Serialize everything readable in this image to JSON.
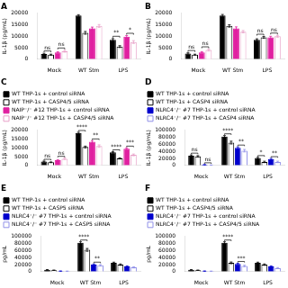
{
  "chart_data": [
    {
      "type": "bar",
      "title": "A",
      "categories": [
        "Mock",
        "WT Stm",
        "LPS"
      ],
      "series": [
        {
          "color": "#000000",
          "marker": "filled",
          "values": [
            2300,
            19000,
            8500
          ],
          "errors": [
            300,
            400,
            500
          ]
        },
        {
          "color": "#000000",
          "marker": "open",
          "values": [
            2000,
            11500,
            5500
          ],
          "errors": [
            200,
            600,
            400
          ]
        },
        {
          "color": "#e020a0",
          "marker": "filled",
          "values": [
            3000,
            13500,
            9800
          ],
          "errors": [
            300,
            500,
            500
          ]
        },
        {
          "color": "#e8a0c8",
          "marker": "open",
          "values": [
            3500,
            14500,
            7500
          ],
          "errors": [
            400,
            600,
            600
          ]
        }
      ],
      "ylabel": "IL-1β (pg/mL)",
      "ylim": [
        0,
        20000
      ],
      "yticks": [
        0,
        5000,
        10000,
        15000,
        20000
      ],
      "grid": false,
      "annotations": [
        {
          "text": "ns",
          "category": "Mock",
          "series": [
            0,
            1
          ]
        },
        {
          "text": "ns",
          "category": "Mock",
          "series": [
            2,
            3
          ]
        },
        {
          "text": "**",
          "category": "LPS",
          "series": [
            0,
            1
          ]
        },
        {
          "text": "*",
          "category": "LPS",
          "series": [
            2,
            3
          ]
        }
      ]
    },
    {
      "type": "bar",
      "title": "B",
      "categories": [
        "Mock",
        "WT Stm",
        "LPS"
      ],
      "series": [
        {
          "color": "#000000",
          "marker": "filled",
          "values": [
            2500,
            19000,
            8500
          ],
          "errors": [
            300,
            500,
            400
          ]
        },
        {
          "color": "#000000",
          "marker": "open",
          "values": [
            2000,
            14500,
            9500
          ],
          "errors": [
            200,
            500,
            400
          ]
        },
        {
          "color": "#e020a0",
          "marker": "filled",
          "values": [
            3000,
            13500,
            9500
          ],
          "errors": [
            300,
            600,
            500
          ]
        },
        {
          "color": "#e8a0c8",
          "marker": "open",
          "values": [
            4000,
            12000,
            10000
          ],
          "errors": [
            400,
            500,
            400
          ]
        }
      ],
      "ylabel": "IL-1β (pg/mL)",
      "ylim": [
        0,
        20000
      ],
      "yticks": [
        0,
        5000,
        10000,
        15000,
        20000
      ],
      "grid": false,
      "annotations": [
        {
          "text": "ns",
          "category": "Mock",
          "series": [
            0,
            1
          ]
        },
        {
          "text": "ns",
          "category": "Mock",
          "series": [
            2,
            3
          ]
        },
        {
          "text": "ns",
          "category": "LPS",
          "series": [
            0,
            1
          ]
        },
        {
          "text": "ns",
          "category": "LPS",
          "series": [
            2,
            3
          ]
        }
      ]
    },
    {
      "type": "bar",
      "title": "C",
      "categories": [
        "Mock",
        "WT Stm",
        "LPS"
      ],
      "legend": "top",
      "series": [
        {
          "name": "WT THP-1s + control siRNA",
          "color": "#000000",
          "marker": "filled",
          "values": [
            2200,
            18500,
            7500
          ],
          "errors": [
            300,
            400,
            400
          ]
        },
        {
          "name": "WT THP-1s + CASP4/5 siRNA",
          "color": "#000000",
          "marker": "open",
          "values": [
            1800,
            10500,
            4000
          ],
          "errors": [
            200,
            500,
            300
          ]
        },
        {
          "name": "NAIP⁻/⁻ #12 THP-1s + control siRNA",
          "color": "#e020a0",
          "marker": "filled",
          "values": [
            3000,
            13500,
            9500
          ],
          "errors": [
            300,
            600,
            500
          ]
        },
        {
          "name": "NAIP⁻/⁻ #12 THP-1s + CASP4/5 siRNA",
          "color": "#e8a0c8",
          "marker": "open",
          "values": [
            3800,
            11000,
            6000
          ],
          "errors": [
            400,
            700,
            500
          ]
        }
      ],
      "ylabel": "IL-1β (pg/mL)",
      "ylim": [
        0,
        20000
      ],
      "yticks": [
        0,
        5000,
        10000,
        15000,
        20000
      ],
      "grid": false,
      "annotations": [
        {
          "text": "ns",
          "category": "Mock",
          "series": [
            0,
            1
          ]
        },
        {
          "text": "ns",
          "category": "Mock",
          "series": [
            2,
            3
          ]
        },
        {
          "text": "****",
          "category": "WT Stm",
          "series": [
            0,
            1
          ]
        },
        {
          "text": "**",
          "category": "WT Stm",
          "series": [
            2,
            3
          ]
        },
        {
          "text": "****",
          "category": "LPS",
          "series": [
            0,
            1
          ]
        },
        {
          "text": "***",
          "category": "LPS",
          "series": [
            2,
            3
          ]
        }
      ]
    },
    {
      "type": "bar",
      "title": "D",
      "categories": [
        "Mock",
        "WT Stm",
        "LPS"
      ],
      "legend": "top",
      "series": [
        {
          "name": "WT THP-1s + control siRNA",
          "color": "#000000",
          "marker": "filled",
          "values": [
            28000,
            82000,
            21000
          ],
          "errors": [
            2000,
            3000,
            2000
          ]
        },
        {
          "name": "WT THP-1s + CASP4 siRNA",
          "color": "#000000",
          "marker": "open",
          "values": [
            26000,
            65000,
            10000
          ],
          "errors": [
            2000,
            4000,
            2000
          ]
        },
        {
          "name": "NLRC4⁻/⁻ #7 THP-1s + control siRNA",
          "color": "#0000cc",
          "marker": "filled",
          "values": [
            2000,
            50000,
            18000
          ],
          "errors": [
            500,
            3000,
            2000
          ]
        },
        {
          "name": "NLRC4⁻/⁻ #7 THP-1s + CASP4 siRNA",
          "color": "#9090e8",
          "marker": "open",
          "values": [
            1000,
            42000,
            10000
          ],
          "errors": [
            300,
            3500,
            2000
          ]
        }
      ],
      "ylabel": "IL-1β (pg/mL)",
      "ylim": [
        0,
        100000
      ],
      "yticks": [
        0,
        20000,
        40000,
        60000,
        80000,
        100000
      ],
      "grid": false,
      "annotations": [
        {
          "text": "ns",
          "category": "Mock",
          "series": [
            0,
            1
          ]
        },
        {
          "text": "ns",
          "category": "Mock",
          "series": [
            2,
            3
          ]
        },
        {
          "text": "****",
          "category": "WT Stm",
          "series": [
            0,
            1
          ]
        },
        {
          "text": "**",
          "category": "WT Stm",
          "series": [
            2,
            3
          ]
        },
        {
          "text": "*",
          "category": "LPS",
          "series": [
            0,
            1
          ]
        },
        {
          "text": "**",
          "category": "LPS",
          "series": [
            2,
            3
          ]
        }
      ]
    },
    {
      "type": "bar",
      "title": "E",
      "categories": [
        "Mock",
        "WT Stm",
        "LPS"
      ],
      "legend": "top",
      "series": [
        {
          "name": "WT THP-1s + control siRNA",
          "color": "#000000",
          "marker": "filled",
          "values": [
            5000,
            82000,
            25000
          ],
          "errors": [
            500,
            3000,
            2000
          ]
        },
        {
          "name": "WT THP-1s + CASP5 siRNA",
          "color": "#000000",
          "marker": "open",
          "values": [
            4000,
            62000,
            20000
          ],
          "errors": [
            400,
            4000,
            2000
          ]
        },
        {
          "name": "NLRC4⁻/⁻ #7 THP-1s + control siRNA",
          "color": "#0000cc",
          "marker": "filled",
          "values": [
            1500,
            20000,
            15000
          ],
          "errors": [
            300,
            2000,
            1500
          ]
        },
        {
          "name": "NLRC4⁻/⁻ #7 THP-1s + CASP5 siRNA",
          "color": "#9090e8",
          "marker": "open",
          "values": [
            1200,
            18000,
            12000
          ],
          "errors": [
            200,
            2000,
            1500
          ]
        }
      ],
      "ylabel": "pg/mL",
      "ylim": [
        0,
        100000
      ],
      "yticks": [
        0,
        20000,
        40000,
        60000,
        80000,
        100000
      ],
      "grid": false,
      "annotations": [
        {
          "text": "****",
          "category": "WT Stm",
          "series": [
            0,
            1
          ]
        },
        {
          "text": "**",
          "category": "WT Stm",
          "series": [
            2,
            3
          ]
        }
      ]
    },
    {
      "type": "bar",
      "title": "F",
      "categories": [
        "Mock",
        "WT Stm",
        "LPS"
      ],
      "legend": "top",
      "series": [
        {
          "name": "WT THP-1s + control siRNA",
          "color": "#000000",
          "marker": "filled",
          "values": [
            5000,
            82000,
            25000
          ],
          "errors": [
            500,
            3000,
            2000
          ]
        },
        {
          "name": "WT THP-1s + CASP4/5 siRNA",
          "color": "#000000",
          "marker": "open",
          "values": [
            4000,
            25000,
            20000
          ],
          "errors": [
            400,
            2500,
            2000
          ]
        },
        {
          "name": "NLRC4⁻/⁻ #7 THP-1s + control siRNA",
          "color": "#0000cc",
          "marker": "filled",
          "values": [
            1500,
            22000,
            15000
          ],
          "errors": [
            300,
            2000,
            1500
          ]
        },
        {
          "name": "NLRC4⁻/⁻ #7 THP-1s + CASP4/5 siRNA",
          "color": "#9090e8",
          "marker": "open",
          "values": [
            1200,
            16000,
            10000
          ],
          "errors": [
            200,
            2000,
            1500
          ]
        }
      ],
      "ylabel": "pg/mL",
      "ylim": [
        0,
        100000
      ],
      "yticks": [
        0,
        20000,
        40000,
        60000,
        80000,
        100000
      ],
      "grid": false,
      "annotations": [
        {
          "text": "****",
          "category": "WT Stm",
          "series": [
            0,
            1
          ]
        },
        {
          "text": "***",
          "category": "WT Stm",
          "series": [
            2,
            3
          ]
        }
      ]
    }
  ]
}
